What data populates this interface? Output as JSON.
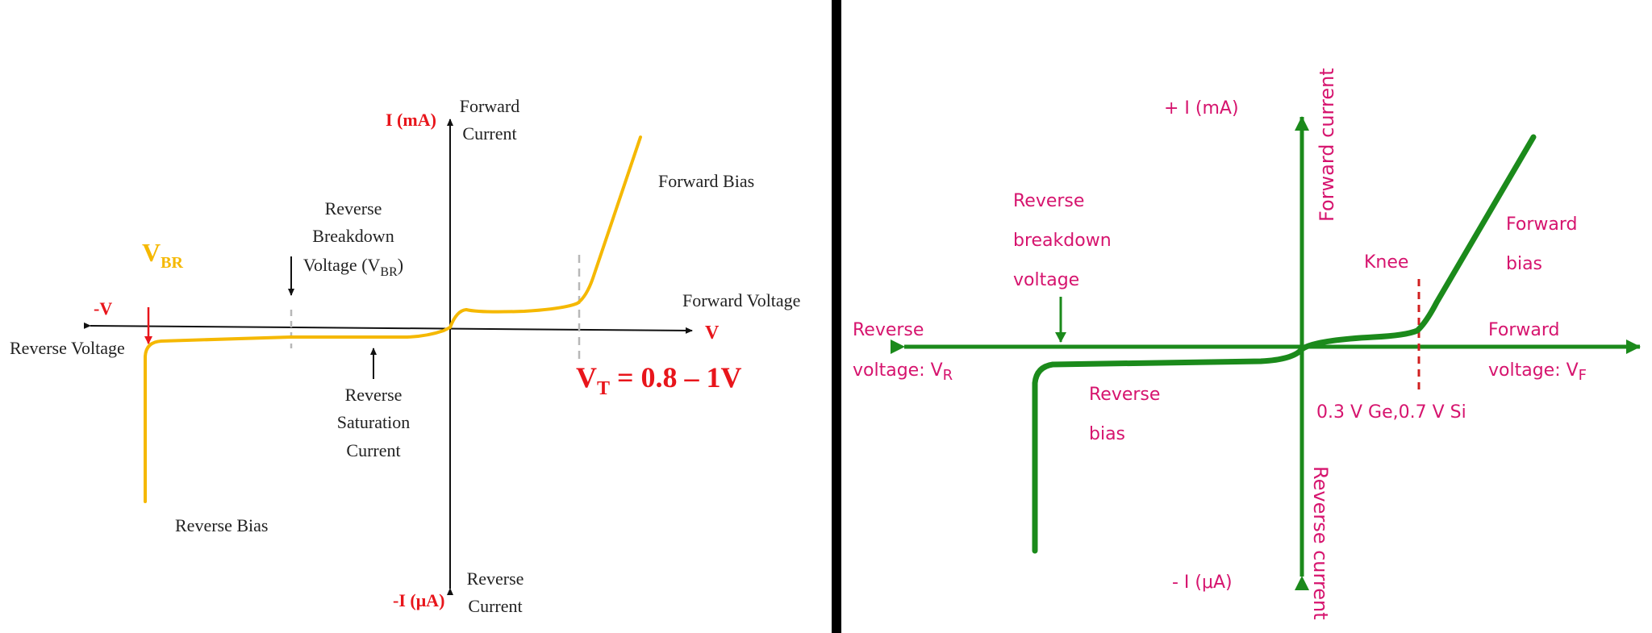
{
  "left_diagram": {
    "colors": {
      "curve": "#F5B800",
      "axis": "#111111",
      "text": "#222222",
      "accent": "#E8151B",
      "dashed_marker": "#B8B8B8"
    },
    "labels": {
      "y_pos_unit": "I (mA)",
      "y_pos_line1": "Forward",
      "y_pos_line2": "Current",
      "y_neg_unit": "-I (μA)",
      "y_neg_line1": "Reverse",
      "y_neg_line2": "Current",
      "x_pos_unit": "V",
      "x_pos_title": "Forward Voltage",
      "x_neg_unit": "-V",
      "x_neg_title": "Reverse Voltage",
      "forward_bias": "Forward Bias",
      "reverse_bias": "Reverse Bias",
      "breakdown_line1": "Reverse",
      "breakdown_line2": "Breakdown",
      "breakdown_line3": "Voltage (V",
      "breakdown_sub": "BR",
      "breakdown_close": ")",
      "saturation_line1": "Reverse",
      "saturation_line2": "Saturation",
      "saturation_line3": "Current",
      "vbr_main": "V",
      "vbr_sub": "BR",
      "vt_main": "V",
      "vt_sub": "T",
      "vt_value": " = 0.8 – 1V"
    }
  },
  "right_diagram": {
    "colors": {
      "curve": "#1B8A1B",
      "text": "#D6146E",
      "knee_marker": "#D02020"
    },
    "labels": {
      "y_pos_unit": "+ I (mA)",
      "y_pos_title": "Forward current",
      "y_neg_unit": "- I (μA)",
      "y_neg_title": "Reverse current",
      "x_pos_line1": "Forward",
      "x_pos_line2": "voltage: V",
      "x_pos_sub": "F",
      "x_neg_line1": "Reverse",
      "x_neg_line2": "voltage: V",
      "x_neg_sub": "R",
      "breakdown_line1": "Reverse",
      "breakdown_line2": "breakdown",
      "breakdown_line3": "voltage",
      "knee": "Knee",
      "forward_bias_line1": "Forward",
      "forward_bias_line2": "bias",
      "reverse_bias_line1": "Reverse",
      "reverse_bias_line2": "bias",
      "threshold": "0.3 V Ge,0.7 V Si"
    }
  }
}
